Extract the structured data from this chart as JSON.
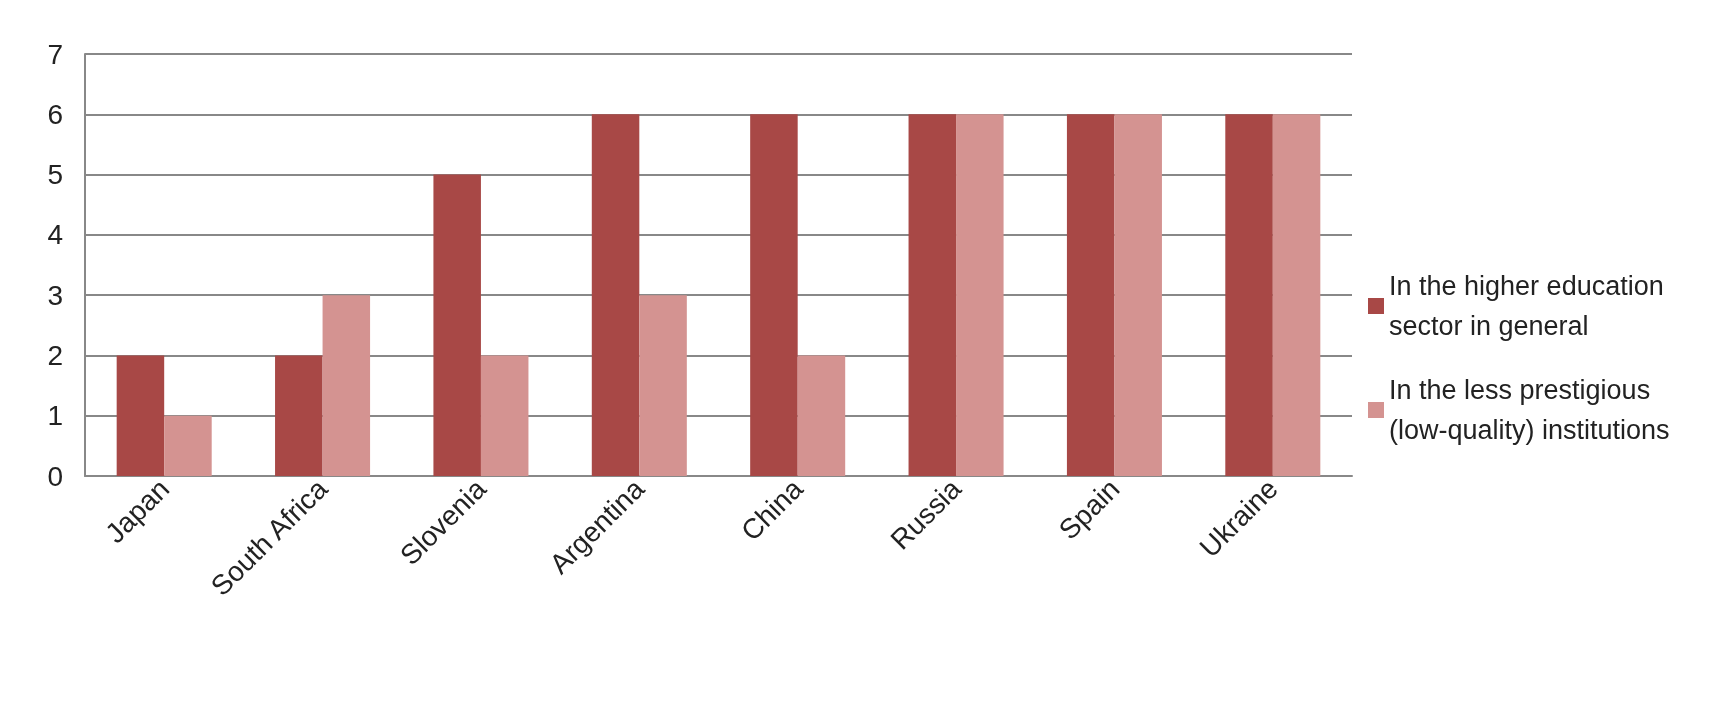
{
  "chart_data": {
    "type": "bar",
    "categories": [
      "Japan",
      "South Africa",
      "Slovenia",
      "Argentina",
      "China",
      "Russia",
      "Spain",
      "Ukraine"
    ],
    "series": [
      {
        "name": "In the higher education sector in general",
        "color": "#a84846",
        "values": [
          2,
          2,
          5,
          6,
          6,
          6,
          6,
          6
        ]
      },
      {
        "name": "In the less prestigious (low-quality) institutions",
        "color": "#d49391",
        "values": [
          1,
          3,
          2,
          3,
          2,
          6,
          6,
          6
        ]
      }
    ],
    "ylim": [
      0,
      7
    ],
    "yticks": [
      0,
      1,
      2,
      3,
      4,
      5,
      6,
      7
    ],
    "grid": "y",
    "legend": "right"
  }
}
